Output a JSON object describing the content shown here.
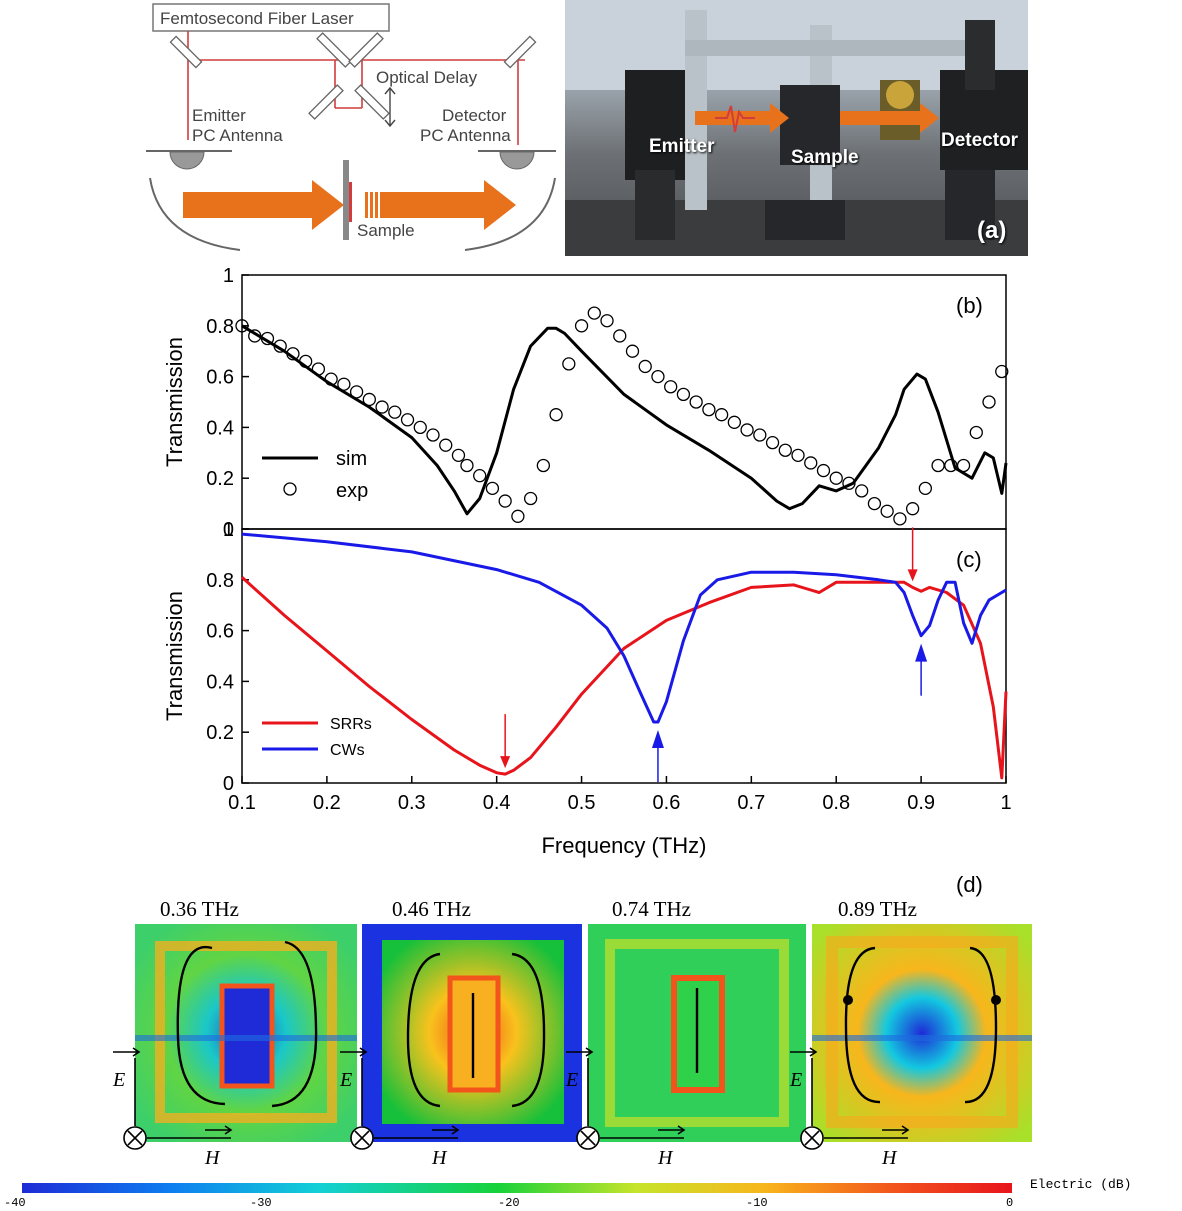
{
  "panel_a": {
    "laser_label": "Femtosecond Fiber Laser",
    "delay_label": "Optical Delay",
    "emitter_label_1": "Emitter",
    "emitter_label_2": "PC Antenna",
    "detector_label_1": "Detector",
    "detector_label_2": "PC Antenna",
    "sample_label": "Sample",
    "photo_emitter": "Emitter",
    "photo_sample": "Sample",
    "photo_detector": "Detector",
    "tag": "(a)",
    "arrow_color": "#e8721c",
    "beam_color": "#d23c3c"
  },
  "panel_b": {
    "tag": "(b)",
    "ylabel": "Transmission",
    "legend_sim": "sim",
    "legend_exp": "exp"
  },
  "panel_c": {
    "tag": "(c)",
    "ylabel": "Transmission",
    "xlabel": "Frequency (THz)",
    "legend_srr": "SRRs",
    "legend_cw": "CWs"
  },
  "panel_d": {
    "tag": "(d)",
    "maps": [
      {
        "freq": "0.36 THz",
        "e_label": "E",
        "h_label": "H"
      },
      {
        "freq": "0.46 THz",
        "e_label": "E",
        "h_label": "H"
      },
      {
        "freq": "0.74 THz",
        "e_label": "E",
        "h_label": "H"
      },
      {
        "freq": "0.89 THz",
        "e_label": "E",
        "h_label": "H"
      }
    ],
    "colorbar_title": "Electric (dB)",
    "colorbar_ticks": [
      "-40",
      "-30",
      "-20",
      "-10",
      "0"
    ]
  },
  "chart_data": [
    {
      "type": "scatter",
      "panel": "b",
      "ylabel": "Transmission",
      "xlim": [
        0.1,
        1.0
      ],
      "ylim": [
        0,
        1
      ],
      "yticks": [
        "0",
        "0.2",
        "0.4",
        "0.6",
        "0.8",
        "1"
      ],
      "series": [
        {
          "name": "sim",
          "kind": "line",
          "color": "#000000",
          "x": [
            0.1,
            0.15,
            0.2,
            0.25,
            0.3,
            0.33,
            0.35,
            0.365,
            0.38,
            0.4,
            0.42,
            0.44,
            0.46,
            0.47,
            0.48,
            0.5,
            0.55,
            0.6,
            0.65,
            0.7,
            0.73,
            0.745,
            0.76,
            0.78,
            0.8,
            0.82,
            0.85,
            0.87,
            0.88,
            0.895,
            0.905,
            0.92,
            0.94,
            0.96,
            0.975,
            0.985,
            0.995,
            1.0
          ],
          "y": [
            0.8,
            0.7,
            0.58,
            0.48,
            0.36,
            0.25,
            0.15,
            0.06,
            0.12,
            0.3,
            0.55,
            0.72,
            0.79,
            0.79,
            0.77,
            0.7,
            0.53,
            0.41,
            0.31,
            0.2,
            0.11,
            0.08,
            0.1,
            0.17,
            0.15,
            0.18,
            0.32,
            0.45,
            0.55,
            0.61,
            0.59,
            0.46,
            0.24,
            0.2,
            0.3,
            0.28,
            0.14,
            0.26
          ]
        },
        {
          "name": "exp",
          "kind": "points",
          "color": "#000000",
          "x": [
            0.1,
            0.115,
            0.13,
            0.145,
            0.16,
            0.175,
            0.19,
            0.205,
            0.22,
            0.235,
            0.25,
            0.265,
            0.28,
            0.295,
            0.31,
            0.325,
            0.34,
            0.355,
            0.365,
            0.38,
            0.395,
            0.41,
            0.425,
            0.44,
            0.455,
            0.47,
            0.485,
            0.5,
            0.515,
            0.53,
            0.545,
            0.56,
            0.575,
            0.59,
            0.605,
            0.62,
            0.635,
            0.65,
            0.665,
            0.68,
            0.695,
            0.71,
            0.725,
            0.74,
            0.755,
            0.77,
            0.785,
            0.8,
            0.815,
            0.83,
            0.845,
            0.86,
            0.875,
            0.89,
            0.905,
            0.92,
            0.935,
            0.95,
            0.965,
            0.98,
            0.995
          ],
          "y": [
            0.8,
            0.76,
            0.75,
            0.72,
            0.69,
            0.66,
            0.63,
            0.59,
            0.57,
            0.54,
            0.51,
            0.48,
            0.46,
            0.43,
            0.4,
            0.37,
            0.33,
            0.29,
            0.25,
            0.21,
            0.16,
            0.11,
            0.05,
            0.12,
            0.25,
            0.45,
            0.65,
            0.8,
            0.85,
            0.82,
            0.76,
            0.7,
            0.64,
            0.6,
            0.56,
            0.53,
            0.5,
            0.47,
            0.45,
            0.42,
            0.39,
            0.37,
            0.34,
            0.31,
            0.29,
            0.26,
            0.23,
            0.2,
            0.18,
            0.15,
            0.1,
            0.07,
            0.04,
            0.08,
            0.16,
            0.25,
            0.25,
            0.25,
            0.38,
            0.5,
            0.62
          ]
        }
      ]
    },
    {
      "type": "line",
      "panel": "c",
      "ylabel": "Transmission",
      "xlabel": "Frequency (THz)",
      "xlim": [
        0.1,
        1.0
      ],
      "ylim": [
        0,
        1
      ],
      "xticks": [
        "0.1",
        "0.2",
        "0.3",
        "0.4",
        "0.5",
        "0.6",
        "0.7",
        "0.8",
        "0.9",
        "1"
      ],
      "yticks": [
        "0",
        "0.2",
        "0.4",
        "0.6",
        "0.8",
        "1"
      ],
      "series": [
        {
          "name": "SRRs",
          "color": "#e8141c",
          "x": [
            0.1,
            0.15,
            0.2,
            0.25,
            0.3,
            0.35,
            0.38,
            0.4,
            0.41,
            0.42,
            0.44,
            0.47,
            0.5,
            0.55,
            0.6,
            0.65,
            0.7,
            0.75,
            0.77,
            0.78,
            0.8,
            0.85,
            0.88,
            0.89,
            0.9,
            0.91,
            0.93,
            0.95,
            0.97,
            0.985,
            0.995,
            1.0
          ],
          "y": [
            0.81,
            0.66,
            0.52,
            0.38,
            0.25,
            0.13,
            0.07,
            0.04,
            0.035,
            0.05,
            0.1,
            0.22,
            0.35,
            0.53,
            0.64,
            0.71,
            0.77,
            0.78,
            0.76,
            0.75,
            0.79,
            0.79,
            0.79,
            0.77,
            0.755,
            0.77,
            0.75,
            0.7,
            0.55,
            0.3,
            0.02,
            0.36
          ]
        },
        {
          "name": "CWs",
          "color": "#1a1ae8",
          "x": [
            0.1,
            0.2,
            0.3,
            0.4,
            0.45,
            0.5,
            0.53,
            0.55,
            0.57,
            0.585,
            0.59,
            0.6,
            0.62,
            0.64,
            0.66,
            0.7,
            0.75,
            0.8,
            0.85,
            0.87,
            0.88,
            0.89,
            0.9,
            0.91,
            0.92,
            0.93,
            0.94,
            0.95,
            0.96,
            0.97,
            0.98,
            1.0
          ],
          "y": [
            0.98,
            0.95,
            0.91,
            0.84,
            0.79,
            0.7,
            0.61,
            0.5,
            0.35,
            0.24,
            0.24,
            0.32,
            0.56,
            0.74,
            0.8,
            0.83,
            0.83,
            0.82,
            0.8,
            0.79,
            0.75,
            0.66,
            0.58,
            0.62,
            0.72,
            0.79,
            0.79,
            0.63,
            0.55,
            0.66,
            0.72,
            0.76
          ]
        }
      ],
      "annotations": [
        {
          "type": "arrow-down",
          "color": "#e8141c",
          "x": 0.41
        },
        {
          "type": "arrow-down",
          "color": "#e8141c",
          "x": 0.89
        },
        {
          "type": "arrow-up",
          "color": "#1a1ae8",
          "x": 0.59
        },
        {
          "type": "arrow-up",
          "color": "#1a1ae8",
          "x": 0.9
        }
      ]
    }
  ]
}
